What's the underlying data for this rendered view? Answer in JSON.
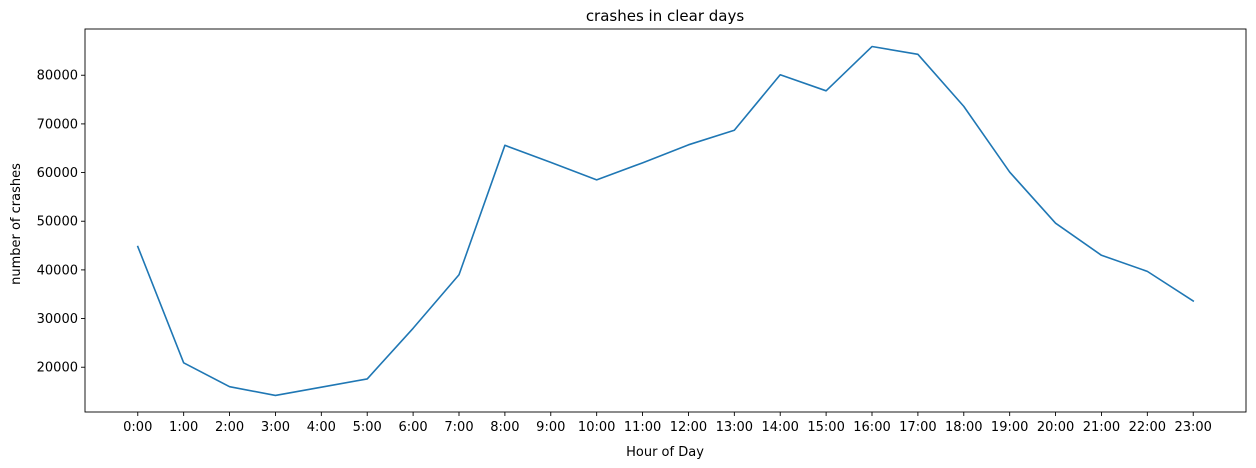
{
  "chart_data": {
    "type": "line",
    "title": "crashes in clear days",
    "xlabel": "Hour of Day",
    "ylabel": "number of crashes",
    "categories": [
      "0:00",
      "1:00",
      "2:00",
      "3:00",
      "4:00",
      "5:00",
      "6:00",
      "7:00",
      "8:00",
      "9:00",
      "10:00",
      "11:00",
      "12:00",
      "13:00",
      "14:00",
      "15:00",
      "16:00",
      "17:00",
      "18:00",
      "19:00",
      "20:00",
      "21:00",
      "22:00",
      "23:00"
    ],
    "series": [
      {
        "color": "#1f77b4",
        "values": [
          44800,
          20900,
          16000,
          14200,
          15900,
          17600,
          28000,
          39000,
          65600,
          62100,
          58500,
          62000,
          65700,
          68700,
          80100,
          76800,
          85900,
          84300,
          73600,
          60100,
          49600,
          43000,
          39700,
          33600
        ]
      }
    ],
    "ylim": [
      10800,
      89500
    ],
    "yticks": [
      20000,
      30000,
      40000,
      50000,
      60000,
      70000,
      80000
    ],
    "ytick_labels": [
      "20000",
      "30000",
      "40000",
      "50000",
      "60000",
      "70000",
      "80000"
    ],
    "grid": false
  }
}
